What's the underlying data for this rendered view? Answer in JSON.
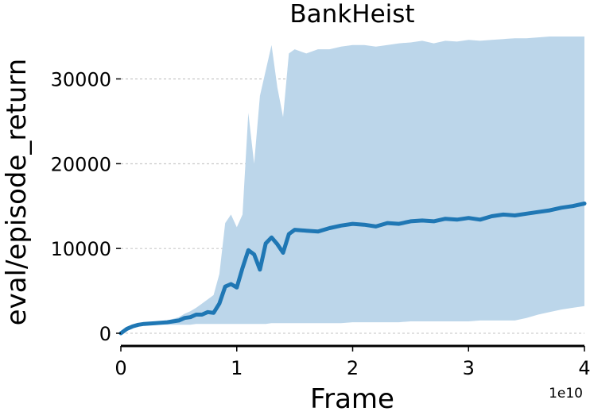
{
  "chart_data": {
    "type": "line",
    "title": "BankHeist",
    "xlabel": "Frame",
    "ylabel": "eval/episode_return",
    "x_offset_label": "1e10",
    "xlim": [
      0,
      4
    ],
    "ylim": [
      -1500,
      36500
    ],
    "xticks": [
      0,
      1,
      2,
      3,
      4
    ],
    "xtick_labels": [
      "0",
      "1",
      "2",
      "3",
      "4"
    ],
    "yticks": [
      0,
      10000,
      20000,
      30000
    ],
    "ytick_labels": [
      "0",
      "10000",
      "20000",
      "30000"
    ],
    "grid": "y-dashed",
    "colors": {
      "line": "#1f77b4",
      "band": "#bcd6ea",
      "grid": "#b0b0b0"
    },
    "series": [
      {
        "x": [
          0.0,
          0.05,
          0.1,
          0.15,
          0.2,
          0.3,
          0.4,
          0.5,
          0.55,
          0.6,
          0.65,
          0.7,
          0.75,
          0.8,
          0.85,
          0.9,
          0.95,
          1.0,
          1.05,
          1.1,
          1.15,
          1.2,
          1.25,
          1.3,
          1.35,
          1.4,
          1.45,
          1.5,
          1.6,
          1.7,
          1.8,
          1.9,
          2.0,
          2.1,
          2.2,
          2.3,
          2.4,
          2.5,
          2.6,
          2.7,
          2.8,
          2.9,
          3.0,
          3.1,
          3.2,
          3.3,
          3.4,
          3.5,
          3.6,
          3.7,
          3.8,
          3.9,
          4.0
        ],
        "mean": [
          0,
          500,
          800,
          1000,
          1100,
          1200,
          1300,
          1500,
          1800,
          1900,
          2200,
          2200,
          2500,
          2400,
          3500,
          5500,
          5800,
          5400,
          7700,
          9800,
          9300,
          7500,
          10600,
          11300,
          10500,
          9500,
          11700,
          12200,
          12100,
          12000,
          12400,
          12700,
          12900,
          12800,
          12600,
          13000,
          12900,
          13200,
          13300,
          13200,
          13500,
          13400,
          13600,
          13400,
          13800,
          14000,
          13900,
          14100,
          14300,
          14500,
          14800,
          15000,
          15300
        ],
        "upper": [
          0,
          500,
          800,
          1000,
          1200,
          1300,
          1500,
          1900,
          2300,
          2600,
          3000,
          3500,
          4000,
          4500,
          7000,
          13000,
          14000,
          12500,
          14000,
          26000,
          20000,
          28000,
          31000,
          34000,
          29000,
          25500,
          33000,
          33500,
          33000,
          33500,
          33500,
          33800,
          34000,
          34000,
          33800,
          34000,
          34200,
          34300,
          34500,
          34200,
          34500,
          34400,
          34600,
          34500,
          34600,
          34700,
          34800,
          34800,
          34900,
          35000,
          35000,
          35000,
          35000
        ],
        "lower": [
          0,
          500,
          800,
          900,
          1000,
          1000,
          1000,
          1000,
          1000,
          1000,
          1100,
          1100,
          1100,
          1100,
          1100,
          1100,
          1100,
          1100,
          1100,
          1100,
          1100,
          1100,
          1100,
          1200,
          1200,
          1200,
          1200,
          1200,
          1200,
          1200,
          1200,
          1200,
          1300,
          1300,
          1300,
          1300,
          1300,
          1400,
          1400,
          1400,
          1400,
          1400,
          1400,
          1500,
          1500,
          1500,
          1500,
          1800,
          2200,
          2500,
          2800,
          3000,
          3200
        ]
      }
    ]
  }
}
